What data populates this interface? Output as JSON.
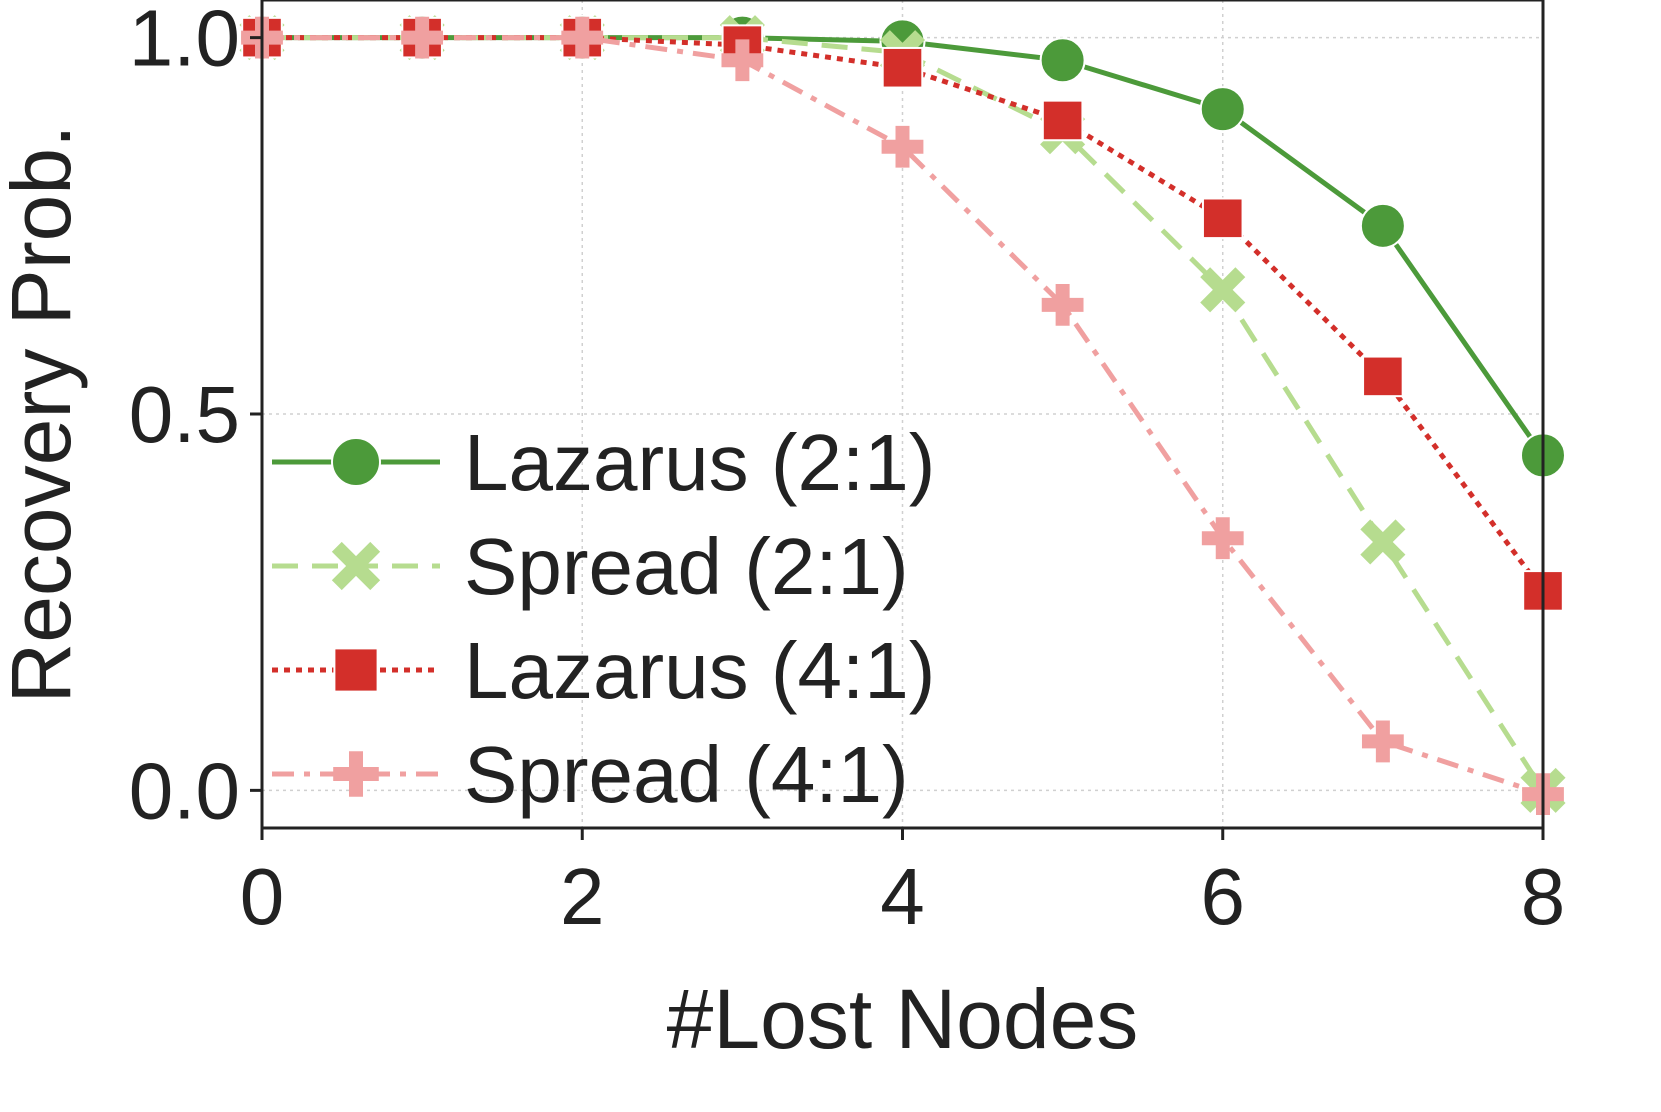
{
  "chart_data": {
    "type": "line",
    "xlabel": "#Lost Nodes",
    "ylabel": "Recovery Prob.",
    "xlim": [
      0,
      8
    ],
    "ylim": [
      -0.05,
      1.05
    ],
    "xticks": [
      0,
      2,
      4,
      6,
      8
    ],
    "xtick_labels": [
      "0",
      "2",
      "4",
      "6",
      "8"
    ],
    "yticks": [
      0.0,
      0.5,
      1.0
    ],
    "ytick_labels": [
      "0.0",
      "0.5",
      "1.0"
    ],
    "grid": true,
    "legend_position": "lower-left",
    "x": [
      0,
      1,
      2,
      3,
      4,
      5,
      6,
      7,
      8
    ],
    "series": [
      {
        "name": "Lazarus (2:1)",
        "color": "#4c9a3a",
        "marker": "circle",
        "line_style": "solid",
        "values": [
          1.0,
          1.0,
          1.0,
          1.0,
          0.995,
          0.97,
          0.905,
          0.75,
          0.445
        ]
      },
      {
        "name": "Spread (2:1)",
        "color": "#b6dc8f",
        "marker": "x",
        "line_style": "dashed",
        "values": [
          1.0,
          1.0,
          1.0,
          1.0,
          0.98,
          0.875,
          0.665,
          0.33,
          0.0
        ]
      },
      {
        "name": "Lazarus (4:1)",
        "color": "#d32f2a",
        "marker": "square",
        "line_style": "dotted",
        "values": [
          1.0,
          1.0,
          1.0,
          0.99,
          0.96,
          0.89,
          0.76,
          0.55,
          0.265
        ]
      },
      {
        "name": "Spread (4:1)",
        "color": "#f0a0a0",
        "marker": "plus",
        "line_style": "dashdot",
        "values": [
          1.0,
          1.0,
          1.0,
          0.97,
          0.855,
          0.645,
          0.335,
          0.065,
          -0.005
        ]
      }
    ]
  }
}
